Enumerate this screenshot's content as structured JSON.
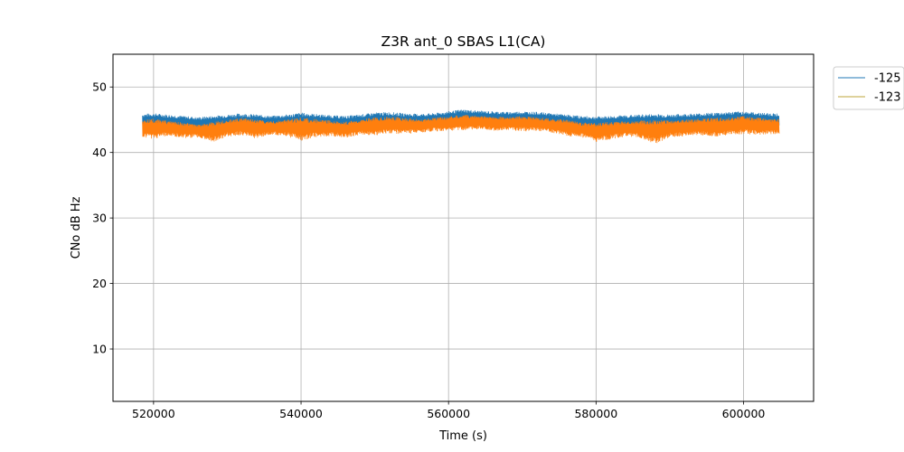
{
  "chart_data": {
    "type": "line",
    "title": "Z3R ant_0 SBAS L1(CA)",
    "xlabel": "Time (s)",
    "ylabel": "CNo dB Hz",
    "xlim": [
      514500,
      609500
    ],
    "ylim": [
      2,
      55
    ],
    "xticks": [
      520000,
      540000,
      560000,
      580000,
      600000
    ],
    "xtick_labels": [
      "520000",
      "540000",
      "560000",
      "580000",
      "600000"
    ],
    "yticks": [
      10,
      20,
      30,
      40,
      50
    ],
    "ytick_labels": [
      "10",
      "20",
      "30",
      "40",
      "50"
    ],
    "grid": true,
    "legend_placement": "upper right, outside plot",
    "series": [
      {
        "name": "-125",
        "color": "#1f77b4",
        "x": [
          518500,
          520000,
          522000,
          524000,
          526000,
          528000,
          530000,
          532000,
          534000,
          536000,
          538000,
          540000,
          542000,
          544000,
          546000,
          548000,
          550000,
          552000,
          554000,
          556000,
          558000,
          560000,
          562000,
          564000,
          566000,
          568000,
          570000,
          572000,
          574000,
          576000,
          578000,
          580000,
          582000,
          584000,
          586000,
          588000,
          590000,
          592000,
          594000,
          596000,
          598000,
          600000,
          602000,
          604000,
          604800
        ],
        "upper": [
          45.9,
          46.0,
          45.8,
          45.6,
          45.4,
          45.6,
          45.8,
          46.0,
          45.8,
          45.6,
          45.8,
          46.1,
          45.9,
          45.7,
          45.6,
          45.8,
          46.1,
          46.2,
          46.0,
          45.9,
          46.0,
          46.3,
          46.6,
          46.4,
          46.3,
          46.2,
          46.3,
          46.2,
          46.0,
          45.8,
          45.6,
          45.5,
          45.6,
          45.7,
          45.8,
          45.9,
          45.8,
          45.9,
          46.0,
          46.1,
          46.2,
          46.3,
          46.1,
          46.0,
          46.0
        ],
        "lower": [
          43.5,
          43.6,
          43.4,
          43.6,
          43.3,
          43.4,
          43.6,
          43.2,
          43.5,
          43.7,
          43.4,
          43.2,
          43.5,
          43.6,
          43.4,
          43.6,
          43.8,
          43.7,
          43.6,
          43.8,
          44.0,
          44.1,
          44.2,
          44.3,
          44.1,
          44.2,
          44.0,
          44.1,
          43.9,
          43.6,
          43.3,
          43.2,
          43.4,
          43.5,
          43.4,
          43.3,
          43.5,
          43.6,
          43.7,
          43.6,
          43.8,
          43.9,
          43.8,
          43.7,
          43.7
        ]
      },
      {
        "name": "-123",
        "color": "#ff7f0e",
        "x": [
          518500,
          520000,
          522000,
          524000,
          526000,
          528000,
          530000,
          532000,
          534000,
          536000,
          538000,
          540000,
          542000,
          544000,
          546000,
          548000,
          550000,
          552000,
          554000,
          556000,
          558000,
          560000,
          562000,
          564000,
          566000,
          568000,
          570000,
          572000,
          574000,
          576000,
          578000,
          580000,
          582000,
          584000,
          586000,
          588000,
          590000,
          592000,
          594000,
          596000,
          598000,
          600000,
          602000,
          604000,
          604800
        ],
        "upper": [
          45.0,
          45.2,
          44.8,
          44.6,
          44.3,
          44.7,
          45.0,
          45.3,
          45.0,
          44.8,
          45.0,
          45.4,
          45.1,
          44.9,
          44.7,
          45.0,
          45.4,
          45.5,
          45.3,
          45.1,
          45.3,
          45.5,
          45.8,
          45.6,
          45.5,
          45.4,
          45.6,
          45.4,
          45.2,
          45.0,
          44.6,
          44.5,
          44.7,
          44.8,
          44.9,
          45.0,
          44.9,
          45.0,
          45.2,
          45.3,
          45.4,
          45.6,
          45.3,
          45.1,
          45.1
        ],
        "lower": [
          42.4,
          42.0,
          42.6,
          42.2,
          42.3,
          41.6,
          42.4,
          42.6,
          42.1,
          42.7,
          42.4,
          41.8,
          42.3,
          42.5,
          42.2,
          42.7,
          42.6,
          42.9,
          42.8,
          43.0,
          43.2,
          43.3,
          43.4,
          43.5,
          43.3,
          43.4,
          43.2,
          43.3,
          43.0,
          42.5,
          42.3,
          41.6,
          42.0,
          42.4,
          42.2,
          41.3,
          42.3,
          42.5,
          42.6,
          42.4,
          42.6,
          42.8,
          42.7,
          42.8,
          42.8
        ]
      }
    ]
  }
}
